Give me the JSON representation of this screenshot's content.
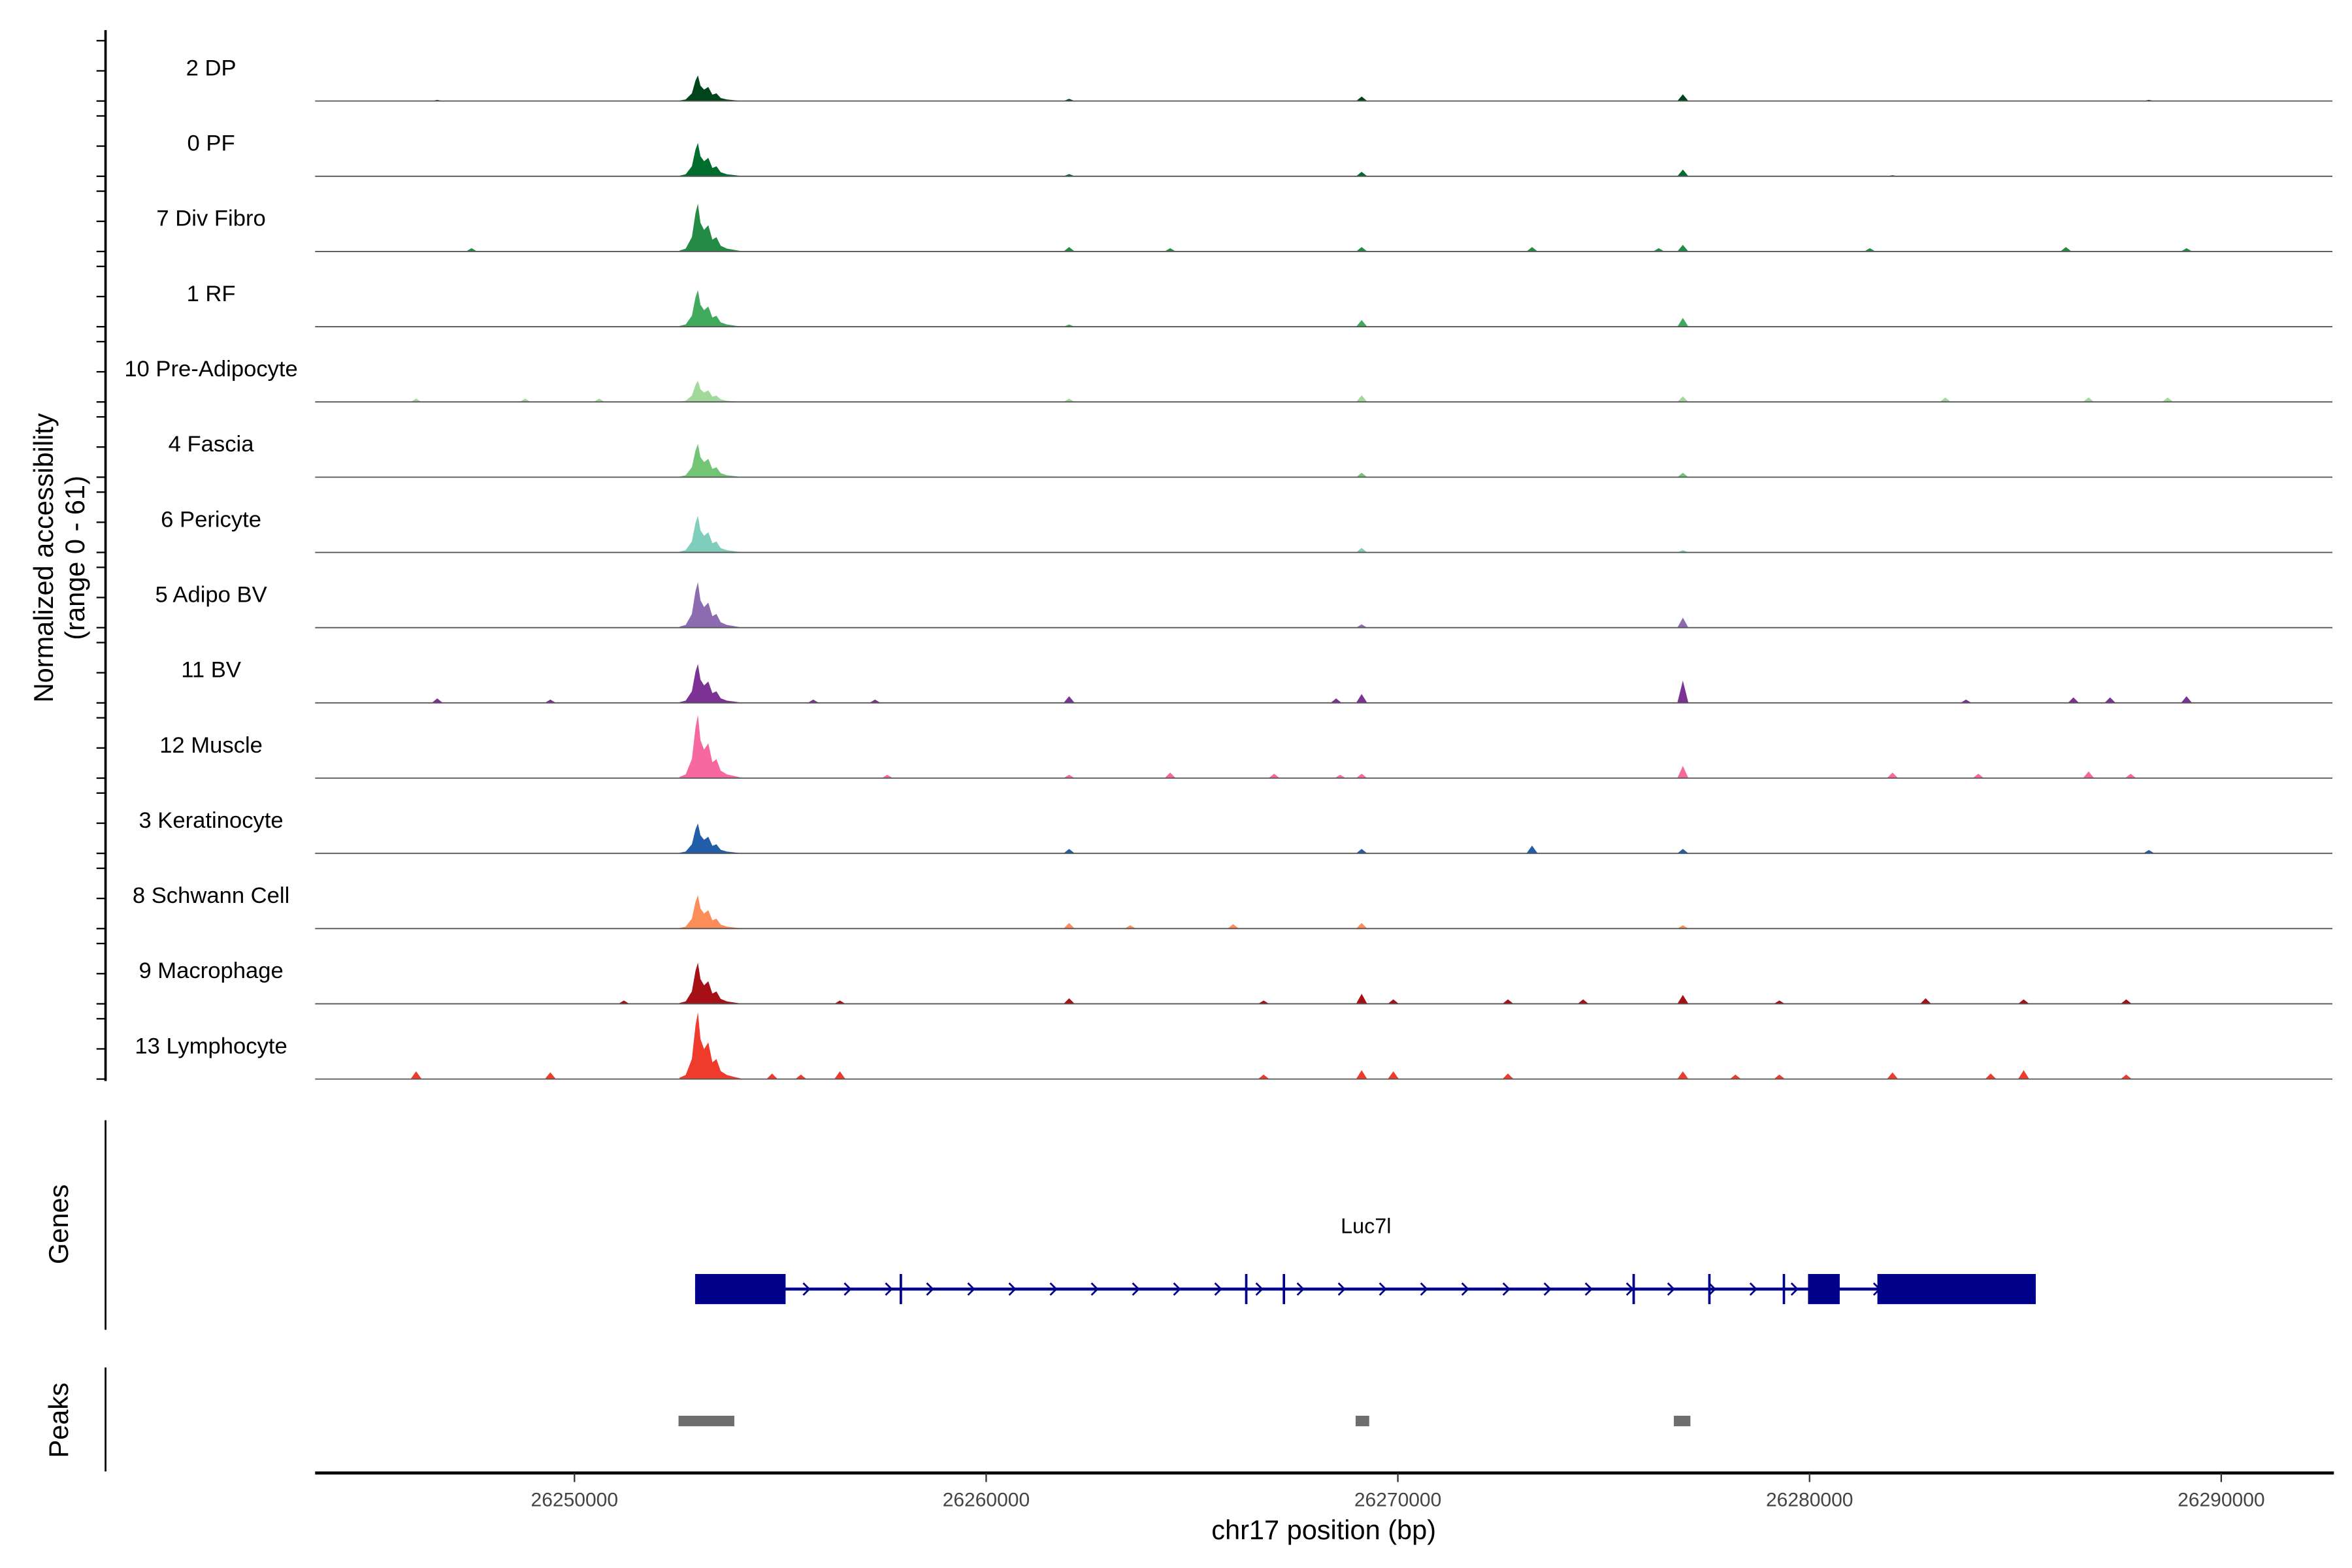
{
  "chart_data": {
    "type": "area",
    "title": "",
    "ylabel": "Normalized accessibility",
    "ylabel_range": "(range 0 - 61)",
    "ylim": [
      0,
      61
    ],
    "xlabel": "chr17 position (bp)",
    "xlim": [
      26243700,
      26292700
    ],
    "xticks": [
      26250000,
      26260000,
      26270000,
      26280000,
      26290000
    ],
    "xtick_labels": [
      "26250000",
      "26260000",
      "26270000",
      "26280000",
      "26290000"
    ],
    "main_peak_center": 26253000,
    "main_peak_shape": [
      [
        -450,
        0.02
      ],
      [
        -300,
        0.06
      ],
      [
        -150,
        0.3
      ],
      [
        -60,
        0.8
      ],
      [
        0,
        1.0
      ],
      [
        60,
        0.6
      ],
      [
        150,
        0.45
      ],
      [
        250,
        0.55
      ],
      [
        350,
        0.25
      ],
      [
        450,
        0.3
      ],
      [
        550,
        0.12
      ],
      [
        700,
        0.06
      ],
      [
        900,
        0.03
      ],
      [
        1100,
        0.0
      ]
    ],
    "tracks": [
      {
        "name": "2 DP",
        "color": "#00441b",
        "main": 23,
        "spikes": [
          [
            26246667,
            1
          ],
          [
            26262015,
            2
          ],
          [
            26269121,
            4
          ],
          [
            26276923,
            6
          ],
          [
            26288242,
            1
          ]
        ]
      },
      {
        "name": "0 PF",
        "color": "#006d2c",
        "main": 30,
        "spikes": [
          [
            26262015,
            2
          ],
          [
            26269121,
            4
          ],
          [
            26276923,
            6
          ],
          [
            26282015,
            1
          ]
        ]
      },
      {
        "name": "7 Div Fibro",
        "color": "#238b45",
        "main": 43,
        "spikes": [
          [
            26247500,
            3
          ],
          [
            26262015,
            4
          ],
          [
            26264469,
            3
          ],
          [
            26269121,
            4
          ],
          [
            26273260,
            4
          ],
          [
            26276337,
            3
          ],
          [
            26276923,
            6
          ],
          [
            26281465,
            3
          ],
          [
            26286227,
            4
          ],
          [
            26289157,
            3
          ]
        ]
      },
      {
        "name": "1 RF",
        "color": "#41ab5d",
        "main": 33,
        "spikes": [
          [
            26262015,
            2
          ],
          [
            26269121,
            6
          ],
          [
            26276923,
            8
          ]
        ]
      },
      {
        "name": "10 Pre-Adipocyte",
        "color": "#a1d99b",
        "main": 19,
        "spikes": [
          [
            26246154,
            3
          ],
          [
            26248800,
            3
          ],
          [
            26250600,
            3
          ],
          [
            26262015,
            3
          ],
          [
            26269121,
            6
          ],
          [
            26276923,
            5
          ],
          [
            26283297,
            4
          ],
          [
            26286777,
            4
          ],
          [
            26288700,
            4
          ]
        ]
      },
      {
        "name": "4 Fascia",
        "color": "#74c476",
        "main": 30,
        "spikes": [
          [
            26269121,
            4
          ],
          [
            26276923,
            4
          ]
        ]
      },
      {
        "name": "6 Pericyte",
        "color": "#7fcdbb",
        "main": 33,
        "spikes": [
          [
            26269121,
            4
          ],
          [
            26276923,
            2
          ]
        ]
      },
      {
        "name": "5 Adipo BV",
        "color": "#8c6bb1",
        "main": 41,
        "spikes": [
          [
            26269121,
            3
          ],
          [
            26276923,
            9
          ]
        ]
      },
      {
        "name": "11 BV",
        "color": "#7b3294",
        "main": 35,
        "spikes": [
          [
            26246667,
            4
          ],
          [
            26249414,
            3
          ],
          [
            26255800,
            3
          ],
          [
            26257300,
            3
          ],
          [
            26262015,
            6
          ],
          [
            26268500,
            4
          ],
          [
            26269121,
            8
          ],
          [
            26276923,
            20
          ],
          [
            26283800,
            3
          ],
          [
            26286410,
            5
          ],
          [
            26287300,
            5
          ],
          [
            26289157,
            6
          ]
        ]
      },
      {
        "name": "12 Muscle",
        "color": "#f768a1",
        "main": 57,
        "spikes": [
          [
            26257600,
            3
          ],
          [
            26262015,
            3
          ],
          [
            26264469,
            5
          ],
          [
            26266996,
            4
          ],
          [
            26268600,
            3
          ],
          [
            26269121,
            4
          ],
          [
            26276923,
            11
          ],
          [
            26282015,
            5
          ],
          [
            26284100,
            4
          ],
          [
            26286777,
            6
          ],
          [
            26287800,
            4
          ]
        ]
      },
      {
        "name": "3 Keratinocyte",
        "color": "#225ea8",
        "main": 27,
        "spikes": [
          [
            26262015,
            4
          ],
          [
            26269121,
            4
          ],
          [
            26273260,
            7
          ],
          [
            26276923,
            4
          ],
          [
            26288242,
            3
          ]
        ]
      },
      {
        "name": "8 Schwann Cell",
        "color": "#fc8d59",
        "main": 30,
        "spikes": [
          [
            26262015,
            5
          ],
          [
            26263500,
            3
          ],
          [
            26266000,
            4
          ],
          [
            26269121,
            5
          ],
          [
            26276923,
            3
          ]
        ]
      },
      {
        "name": "9 Macrophage",
        "color": "#a50f15",
        "main": 37,
        "spikes": [
          [
            26251200,
            3
          ],
          [
            26256447,
            3
          ],
          [
            26262015,
            5
          ],
          [
            26266740,
            3
          ],
          [
            26269121,
            9
          ],
          [
            26269890,
            4
          ],
          [
            26272674,
            4
          ],
          [
            26274500,
            4
          ],
          [
            26276923,
            8
          ],
          [
            26279267,
            3
          ],
          [
            26282820,
            5
          ],
          [
            26285201,
            4
          ],
          [
            26287692,
            4
          ]
        ]
      },
      {
        "name": "13 Lymphocyte",
        "color": "#ef3b2c",
        "main": 60,
        "spikes": [
          [
            26246154,
            7
          ],
          [
            26249414,
            6
          ],
          [
            26254800,
            5
          ],
          [
            26255500,
            4
          ],
          [
            26256447,
            7
          ],
          [
            26266740,
            4
          ],
          [
            26269121,
            8
          ],
          [
            26269890,
            7
          ],
          [
            26272674,
            5
          ],
          [
            26276923,
            7
          ],
          [
            26278200,
            4
          ],
          [
            26279267,
            4
          ],
          [
            26282015,
            6
          ],
          [
            26284400,
            5
          ],
          [
            26285201,
            8
          ],
          [
            26287692,
            4
          ]
        ]
      }
    ]
  },
  "genes_panel": {
    "label": "Genes",
    "gene_name": "Luc7l",
    "color": "#00008b",
    "start": 26252930,
    "end": 26285495,
    "exons": [
      [
        26252930,
        26255128,
        "thick"
      ],
      [
        26257920,
        26257980,
        "thin"
      ],
      [
        26266310,
        26266365,
        "thin"
      ],
      [
        26267225,
        26267280,
        "thin"
      ],
      [
        26275720,
        26275780,
        "thin"
      ],
      [
        26277560,
        26277600,
        "thin"
      ],
      [
        26279370,
        26279390,
        "thin"
      ],
      [
        26279963,
        26280733,
        "thick"
      ],
      [
        26281648,
        26285495,
        "thick"
      ]
    ]
  },
  "peaks_panel": {
    "label": "Peaks",
    "color": "#6e6e6e",
    "peaks": [
      [
        26252527,
        26253883
      ],
      [
        26268974,
        26269304
      ],
      [
        26276703,
        26277106
      ]
    ]
  }
}
